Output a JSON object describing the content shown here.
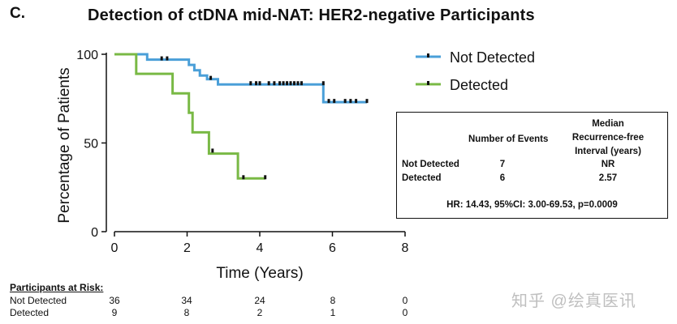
{
  "panel_letter": "C.",
  "watermark": "知乎 @绘真医讯",
  "colors": {
    "not_detected": "#4a9fd8",
    "detected": "#79b945",
    "axis": "#111111"
  },
  "chart_data": {
    "type": "line",
    "subtype": "kaplan-meier",
    "title": "Detection of ctDNA mid-NAT: HER2-negative Participants",
    "xlabel": "Time (Years)",
    "ylabel": "Percentage of Patients",
    "xlim": [
      0,
      8
    ],
    "ylim": [
      0,
      100
    ],
    "xticks": [
      0,
      2,
      4,
      6,
      8
    ],
    "yticks": [
      0,
      50,
      100
    ],
    "legend_position": "top-right",
    "series": [
      {
        "name": "Not Detected",
        "color": "#4a9fd8",
        "steps": [
          [
            0,
            100
          ],
          [
            0.9,
            100
          ],
          [
            0.9,
            97
          ],
          [
            2.05,
            97
          ],
          [
            2.05,
            94
          ],
          [
            2.2,
            94
          ],
          [
            2.2,
            91
          ],
          [
            2.35,
            91
          ],
          [
            2.35,
            88
          ],
          [
            2.55,
            88
          ],
          [
            2.55,
            86
          ],
          [
            2.85,
            86
          ],
          [
            2.85,
            83
          ],
          [
            5.75,
            83
          ],
          [
            5.75,
            73
          ],
          [
            6.95,
            73
          ]
        ],
        "censored": [
          [
            1.3,
            97
          ],
          [
            1.45,
            97
          ],
          [
            2.65,
            86
          ],
          [
            3.75,
            83
          ],
          [
            3.9,
            83
          ],
          [
            4.0,
            83
          ],
          [
            4.25,
            83
          ],
          [
            4.4,
            83
          ],
          [
            4.55,
            83
          ],
          [
            4.65,
            83
          ],
          [
            4.75,
            83
          ],
          [
            4.85,
            83
          ],
          [
            4.95,
            83
          ],
          [
            5.05,
            83
          ],
          [
            5.15,
            83
          ],
          [
            5.75,
            83
          ],
          [
            5.9,
            73
          ],
          [
            6.05,
            73
          ],
          [
            6.35,
            73
          ],
          [
            6.5,
            73
          ],
          [
            6.65,
            73
          ],
          [
            6.95,
            73
          ]
        ]
      },
      {
        "name": "Detected",
        "color": "#79b945",
        "steps": [
          [
            0,
            100
          ],
          [
            0.6,
            100
          ],
          [
            0.6,
            89
          ],
          [
            1.6,
            89
          ],
          [
            1.6,
            78
          ],
          [
            2.05,
            78
          ],
          [
            2.05,
            67
          ],
          [
            2.15,
            67
          ],
          [
            2.15,
            56
          ],
          [
            2.6,
            56
          ],
          [
            2.6,
            44
          ],
          [
            3.4,
            44
          ],
          [
            3.4,
            30
          ],
          [
            4.15,
            30
          ]
        ],
        "censored": [
          [
            2.7,
            45
          ],
          [
            3.55,
            30
          ],
          [
            4.15,
            30
          ]
        ]
      }
    ]
  },
  "stats_table": {
    "header_events": "Number of Events",
    "header_median_line1": "Median",
    "header_median_line2": "Recurrence-free",
    "header_median_line3": "Interval (years)",
    "rows": [
      {
        "label": "Not Detected",
        "events": "7",
        "median": "NR"
      },
      {
        "label": "Detected",
        "events": "6",
        "median": "2.57"
      }
    ],
    "hr_text": "HR: 14.43, 95%CI: 3.00-69.53, p=0.0009"
  },
  "at_risk": {
    "title": "Participants at Risk:",
    "timepoints": [
      0,
      2,
      4,
      6,
      8
    ],
    "rows": [
      {
        "label": "Not Detected",
        "values": [
          "36",
          "34",
          "24",
          "8",
          "0"
        ]
      },
      {
        "label": "Detected",
        "values": [
          "9",
          "8",
          "2",
          "1",
          "0"
        ]
      }
    ]
  }
}
